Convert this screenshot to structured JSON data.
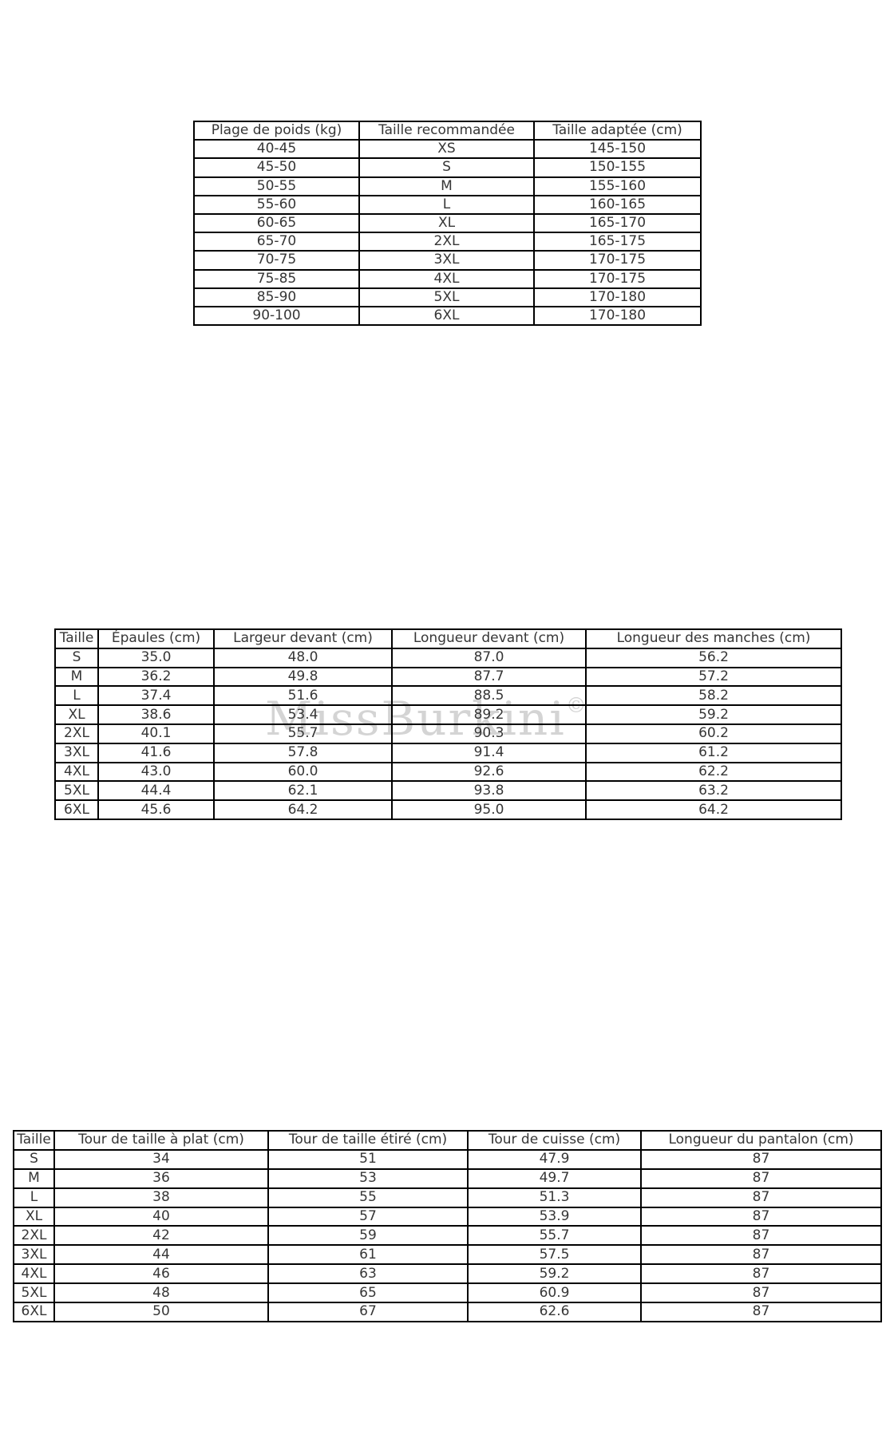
{
  "page": {
    "background": "#ffffff"
  },
  "colors": {
    "border": "#000000",
    "text": "#363636",
    "watermark": "#d4d4d4"
  },
  "watermark": {
    "text": "MissBurkini",
    "symbol": "©"
  },
  "tables": [
    {
      "name": "weight-size-recommendation",
      "headers": [
        "Plage de poids (kg)",
        "Taille recommandée",
        "Taille adaptée (cm)"
      ],
      "rows": [
        [
          "40-45",
          "XS",
          "145-150"
        ],
        [
          "45-50",
          "S",
          "150-155"
        ],
        [
          "50-55",
          "M",
          "155-160"
        ],
        [
          "55-60",
          "L",
          "160-165"
        ],
        [
          "60-65",
          "XL",
          "165-170"
        ],
        [
          "65-70",
          "2XL",
          "165-175"
        ],
        [
          "70-75",
          "3XL",
          "170-175"
        ],
        [
          "75-85",
          "4XL",
          "170-175"
        ],
        [
          "85-90",
          "5XL",
          "170-180"
        ],
        [
          "90-100",
          "6XL",
          "170-180"
        ]
      ]
    },
    {
      "name": "top-measurements",
      "headers": [
        "Taille",
        "Épaules (cm)",
        "Largeur devant (cm)",
        "Longueur devant (cm)",
        "Longueur des manches (cm)"
      ],
      "rows": [
        [
          "S",
          "35.0",
          "48.0",
          "87.0",
          "56.2"
        ],
        [
          "M",
          "36.2",
          "49.8",
          "87.7",
          "57.2"
        ],
        [
          "L",
          "37.4",
          "51.6",
          "88.5",
          "58.2"
        ],
        [
          "XL",
          "38.6",
          "53.4",
          "89.2",
          "59.2"
        ],
        [
          "2XL",
          "40.1",
          "55.7",
          "90.3",
          "60.2"
        ],
        [
          "3XL",
          "41.6",
          "57.8",
          "91.4",
          "61.2"
        ],
        [
          "4XL",
          "43.0",
          "60.0",
          "92.6",
          "62.2"
        ],
        [
          "5XL",
          "44.4",
          "62.1",
          "93.8",
          "63.2"
        ],
        [
          "6XL",
          "45.6",
          "64.2",
          "95.0",
          "64.2"
        ]
      ]
    },
    {
      "name": "pants-measurements",
      "headers": [
        "Taille",
        "Tour de taille à plat (cm)",
        "Tour de taille étiré (cm)",
        "Tour de cuisse (cm)",
        "Longueur du pantalon (cm)"
      ],
      "rows": [
        [
          "S",
          "34",
          "51",
          "47.9",
          "87"
        ],
        [
          "M",
          "36",
          "53",
          "49.7",
          "87"
        ],
        [
          "L",
          "38",
          "55",
          "51.3",
          "87"
        ],
        [
          "XL",
          "40",
          "57",
          "53.9",
          "87"
        ],
        [
          "2XL",
          "42",
          "59",
          "55.7",
          "87"
        ],
        [
          "3XL",
          "44",
          "61",
          "57.5",
          "87"
        ],
        [
          "4XL",
          "46",
          "63",
          "59.2",
          "87"
        ],
        [
          "5XL",
          "48",
          "65",
          "60.9",
          "87"
        ],
        [
          "6XL",
          "50",
          "67",
          "62.6",
          "87"
        ]
      ]
    }
  ]
}
